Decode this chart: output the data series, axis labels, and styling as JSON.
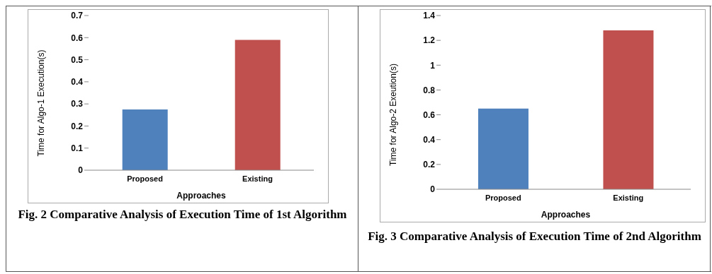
{
  "chart_data": [
    {
      "type": "bar",
      "categories": [
        "Proposed",
        "Existing"
      ],
      "values": [
        0.275,
        0.59
      ],
      "colors": [
        "#4f81bd",
        "#c0504d"
      ],
      "xlabel": "Approaches",
      "ylabel": "Time for Algo-1 Execution(s)",
      "ylim": [
        0,
        0.7
      ],
      "yticks": [
        0,
        0.1,
        0.2,
        0.3,
        0.4,
        0.5,
        0.6,
        0.7
      ],
      "grid": false,
      "legend": false,
      "annotations": [
        "Fig. 2 Comparative Analysis of Execution Time of 1st Algorithm"
      ]
    },
    {
      "type": "bar",
      "categories": [
        "Proposed",
        "Existing"
      ],
      "values": [
        0.65,
        1.28
      ],
      "colors": [
        "#4f81bd",
        "#c0504d"
      ],
      "xlabel": "Approaches",
      "ylabel": "Time for Algo-2 Exeution(s)",
      "ylim": [
        0,
        1.4
      ],
      "yticks": [
        0,
        0.2,
        0.4,
        0.6,
        0.8,
        1,
        1.2,
        1.4
      ],
      "grid": false,
      "legend": false,
      "annotations": [
        "Fig. 3 Comparative Analysis of Execution Time of 2nd Algorithm"
      ]
    }
  ]
}
